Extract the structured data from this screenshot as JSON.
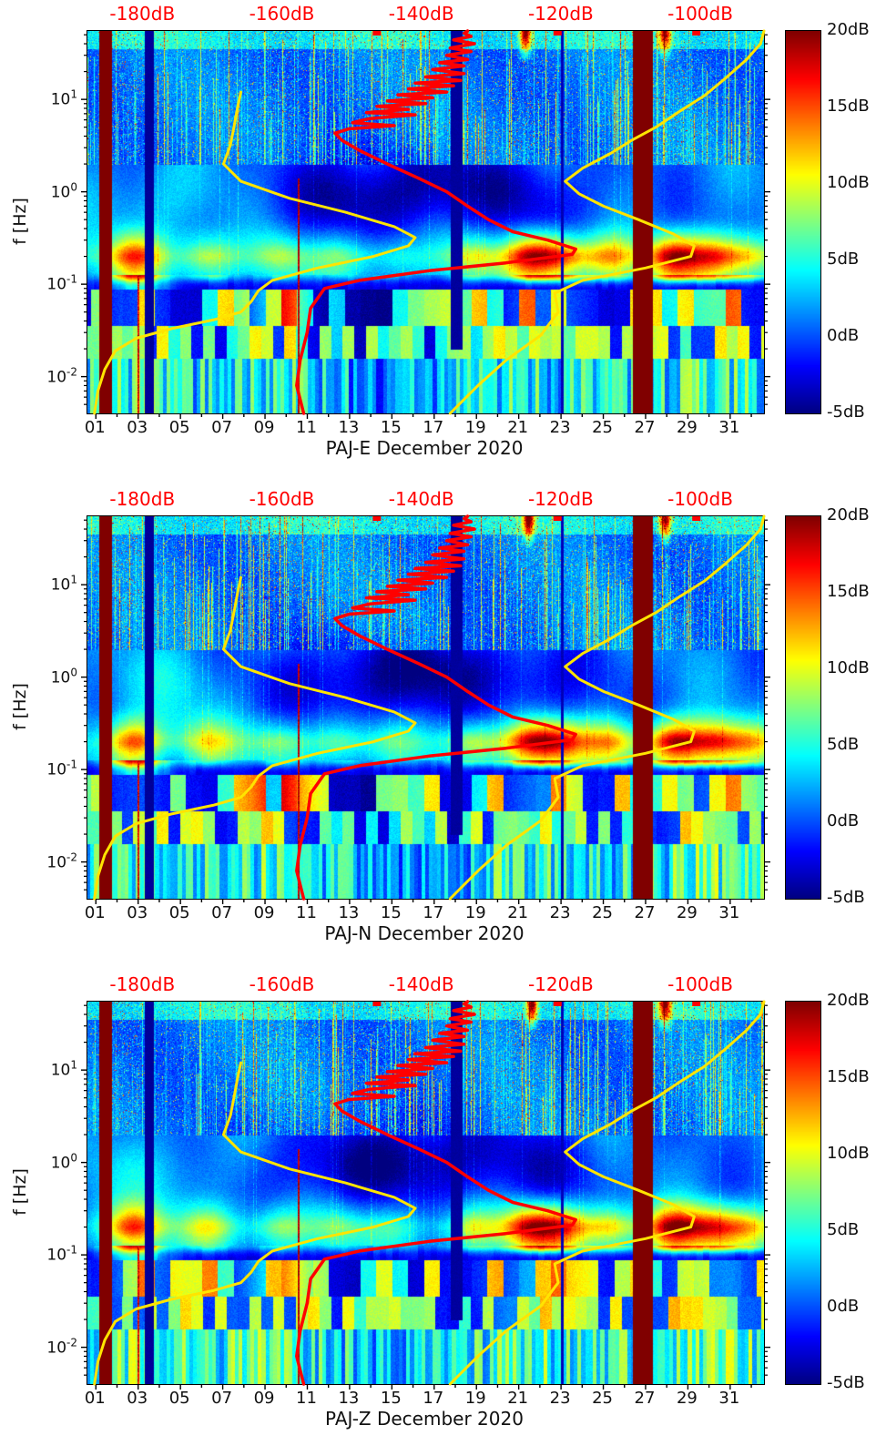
{
  "chart_data": {
    "type": "heatmap",
    "subtype": "seismic-spectrogram",
    "panels": [
      {
        "id": "PAJ-E",
        "title": "PAJ-E December 2020",
        "seed": 1
      },
      {
        "id": "PAJ-N",
        "title": "PAJ-N December 2020",
        "seed": 2
      },
      {
        "id": "PAJ-Z",
        "title": "PAJ-Z December 2020",
        "seed": 3
      }
    ],
    "axes": {
      "x": {
        "unit": "day of month",
        "domain": [
          0.6,
          32.6
        ],
        "tick_days": [
          1,
          3,
          5,
          7,
          9,
          11,
          13,
          15,
          17,
          19,
          21,
          23,
          25,
          27,
          29,
          31
        ],
        "tick_labels": [
          "01",
          "03",
          "05",
          "07",
          "09",
          "11",
          "13",
          "15",
          "17",
          "19",
          "21",
          "23",
          "25",
          "27",
          "29",
          "31"
        ]
      },
      "y": {
        "label": "f [Hz]",
        "scale": "log",
        "domain": [
          0.004,
          55
        ],
        "ticks": [
          {
            "value": 10,
            "base": "10",
            "exp": "1"
          },
          {
            "value": 1,
            "base": "10",
            "exp": "0"
          },
          {
            "value": 0.1,
            "base": "10",
            "exp": "-1"
          },
          {
            "value": 0.01,
            "base": "10",
            "exp": "-2"
          }
        ]
      },
      "top": {
        "color": "#ff0000",
        "unit": "dB",
        "domain": [
          -188,
          -91
        ],
        "ticks": [
          -180,
          -160,
          -140,
          -120,
          -100
        ],
        "tick_labels": [
          "-180dB",
          "-160dB",
          "-140dB",
          "-120dB",
          "-100dB"
        ]
      }
    },
    "colorbar": {
      "colormap": "jet",
      "min": -5,
      "max": 20,
      "tick_values": [
        20,
        15,
        10,
        5,
        0,
        -5
      ],
      "tick_labels": [
        "20dB",
        "15dB",
        "10dB",
        "5dB",
        "0dB",
        "-5dB"
      ]
    },
    "curves": {
      "red_psd": {
        "color": "#ff0000",
        "points_db_hz": [
          [
            -157,
            0.004
          ],
          [
            -158,
            0.008
          ],
          [
            -157.5,
            0.015
          ],
          [
            -156.5,
            0.03
          ],
          [
            -156,
            0.055
          ],
          [
            -154,
            0.09
          ],
          [
            -149,
            0.11
          ],
          [
            -139,
            0.14
          ],
          [
            -128,
            0.17
          ],
          [
            -118.5,
            0.21
          ],
          [
            -118,
            0.24
          ],
          [
            -122,
            0.3
          ],
          [
            -127,
            0.37
          ],
          [
            -130.5,
            0.5
          ],
          [
            -133.5,
            0.7
          ],
          [
            -136.5,
            1.0
          ],
          [
            -140.5,
            1.4
          ],
          [
            -145,
            2.0
          ],
          [
            -149,
            2.8
          ],
          [
            -151.5,
            3.6
          ],
          [
            -152.5,
            4.3
          ],
          [
            -150.5,
            4.8
          ],
          [
            -144,
            5.2
          ],
          [
            -150,
            5.6
          ],
          [
            -147.5,
            6.2
          ],
          [
            -141,
            6.8
          ],
          [
            -148,
            7.2
          ],
          [
            -142,
            7.8
          ],
          [
            -146.5,
            8.4
          ],
          [
            -139.5,
            9
          ],
          [
            -145,
            9.6
          ],
          [
            -138.5,
            10.4
          ],
          [
            -143.5,
            11.2
          ],
          [
            -136.5,
            12
          ],
          [
            -142,
            13
          ],
          [
            -135.5,
            14
          ],
          [
            -141,
            15
          ],
          [
            -134.5,
            16
          ],
          [
            -139.5,
            17.5
          ],
          [
            -134,
            19
          ],
          [
            -138.5,
            21
          ],
          [
            -134,
            23
          ],
          [
            -137.5,
            25
          ],
          [
            -133.5,
            27
          ],
          [
            -136.5,
            30
          ],
          [
            -133,
            33
          ],
          [
            -136,
            36
          ],
          [
            -132.5,
            40
          ],
          [
            -135.5,
            44
          ],
          [
            -133,
            48
          ],
          [
            -134,
            52
          ],
          [
            -133.5,
            55
          ]
        ]
      },
      "yellow_low": {
        "color": "#ffe400",
        "points_db_hz": [
          [
            -187,
            0.004
          ],
          [
            -186.5,
            0.007
          ],
          [
            -185.5,
            0.012
          ],
          [
            -184,
            0.019
          ],
          [
            -181,
            0.026
          ],
          [
            -176,
            0.033
          ],
          [
            -170,
            0.041
          ],
          [
            -166,
            0.05
          ],
          [
            -164.5,
            0.065
          ],
          [
            -163.5,
            0.085
          ],
          [
            -161.5,
            0.11
          ],
          [
            -155,
            0.15
          ],
          [
            -147,
            0.2
          ],
          [
            -142,
            0.26
          ],
          [
            -141,
            0.32
          ],
          [
            -144,
            0.42
          ],
          [
            -151,
            0.6
          ],
          [
            -159,
            0.85
          ],
          [
            -166,
            1.3
          ],
          [
            -168.5,
            2.0
          ],
          [
            -167.5,
            3.2
          ],
          [
            -167,
            5
          ],
          [
            -166.5,
            8
          ],
          [
            -166,
            12
          ]
        ]
      },
      "yellow_high": {
        "color": "#ffe400",
        "points_db_hz": [
          [
            -136,
            0.004
          ],
          [
            -132,
            0.008
          ],
          [
            -128,
            0.015
          ],
          [
            -123,
            0.028
          ],
          [
            -120.5,
            0.05
          ],
          [
            -121,
            0.08
          ],
          [
            -117,
            0.11
          ],
          [
            -108,
            0.15
          ],
          [
            -101.5,
            0.2
          ],
          [
            -101,
            0.26
          ],
          [
            -104,
            0.35
          ],
          [
            -109,
            0.5
          ],
          [
            -114,
            0.7
          ],
          [
            -117.5,
            0.95
          ],
          [
            -119.5,
            1.3
          ],
          [
            -117,
            1.8
          ],
          [
            -113,
            2.6
          ],
          [
            -110,
            3.6
          ],
          [
            -106.5,
            5
          ],
          [
            -103,
            7.5
          ],
          [
            -99.5,
            11
          ],
          [
            -96.5,
            17
          ],
          [
            -93.5,
            27
          ],
          [
            -91.5,
            40
          ],
          [
            -91,
            55
          ]
        ]
      },
      "top_markers_db": [
        -146.5,
        -120.6,
        -100.7
      ]
    },
    "features": {
      "microseism_peak_width": 0.9,
      "microseism_peaks_day_amp": [
        [
          2.8,
          9
        ],
        [
          6.3,
          5
        ],
        [
          9.7,
          4
        ],
        [
          12.5,
          3
        ],
        [
          15,
          2
        ],
        [
          18.8,
          5
        ],
        [
          21.5,
          11
        ],
        [
          23,
          9
        ],
        [
          25.3,
          7
        ],
        [
          28.3,
          12
        ],
        [
          30.2,
          9
        ],
        [
          31.9,
          6
        ]
      ],
      "vertical_bands": [
        {
          "from_day": 1.12,
          "to_day": 1.72,
          "code": 1,
          "desc": "saturated high-power column (clipped, dark red)"
        },
        {
          "from_day": 2.95,
          "to_day": 3.04,
          "code": 6,
          "desc": "thin high-power line below 0.125 Hz"
        },
        {
          "from_day": 3.28,
          "to_day": 3.72,
          "code": 2,
          "desc": "data gap (deep blue column)"
        },
        {
          "from_day": 10.52,
          "to_day": 10.62,
          "code": 5,
          "desc": "thin high-power line below ~1.4 Hz"
        },
        {
          "from_day": 17.78,
          "to_day": 18.32,
          "code": 3,
          "desc": "data gap (deep blue column)"
        },
        {
          "from_day": 22.98,
          "to_day": 23.12,
          "code": 4,
          "desc": "thin data gap"
        },
        {
          "from_day": 26.38,
          "to_day": 27.32,
          "code": 1,
          "desc": "saturated high-power column (clipped, dark red)"
        }
      ]
    }
  }
}
